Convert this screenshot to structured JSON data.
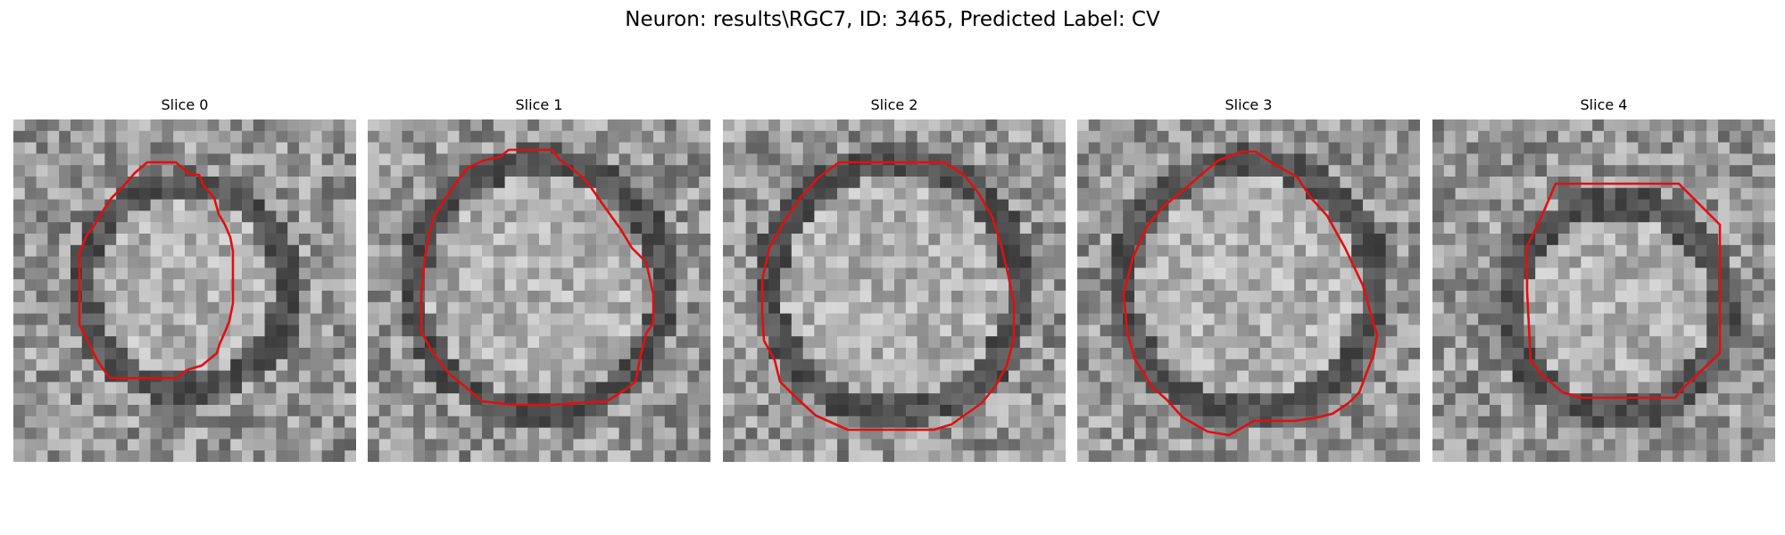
{
  "figure": {
    "title": "Neuron: results\\RGC7, ID: 3465, Predicted Label: CV"
  },
  "style": {
    "contour_color": "#e01010"
  },
  "panels": [
    {
      "title": "Slice 0",
      "seed": 11
    },
    {
      "title": "Slice 1",
      "seed": 23
    },
    {
      "title": "Slice 2",
      "seed": 37
    },
    {
      "title": "Slice 3",
      "seed": 41
    },
    {
      "title": "Slice 4",
      "seed": 59
    }
  ]
}
